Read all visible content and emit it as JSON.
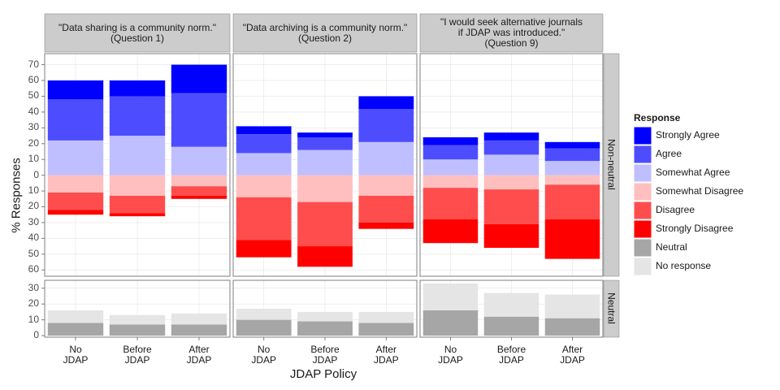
{
  "chart_data": {
    "type": "faceted-diverging-stacked-bar",
    "x_label": "JDAP Policy",
    "y_label": "% Responses",
    "legend_title": "Response",
    "categories": [
      "No\nJDAP",
      "Before\nJDAP",
      "After\nJDAP"
    ],
    "panels": [
      "\"Data sharing is a community norm.\"\n(Question 1)",
      "\"Data archiving is a community norm.\"\n(Question 2)",
      "\"I would seek alternative journals\nif JDAP was introduced.\"\n(Question 9)"
    ],
    "grid": true,
    "rows": [
      {
        "label": "Non-neutral",
        "ylim": [
          -64,
          77
        ],
        "yticks": [
          {
            "value": -60,
            "label": "60"
          },
          {
            "value": -50,
            "label": "50"
          },
          {
            "value": -40,
            "label": "40"
          },
          {
            "value": -30,
            "label": "30"
          },
          {
            "value": -20,
            "label": "20"
          },
          {
            "value": -10,
            "label": "10"
          },
          0,
          10,
          20,
          30,
          40,
          50,
          60,
          70
        ],
        "series": [
          {
            "name": "Somewhat Agree",
            "color": "#bfbfff",
            "values": [
              [
                22,
                25,
                18
              ],
              [
                14,
                16,
                21
              ],
              [
                10,
                13,
                9
              ]
            ]
          },
          {
            "name": "Agree",
            "color": "#4d4dff",
            "values": [
              [
                26,
                25,
                34
              ],
              [
                12,
                8,
                21
              ],
              [
                9,
                9,
                8
              ]
            ]
          },
          {
            "name": "Strongly Agree",
            "color": "#0000ff",
            "values": [
              [
                12,
                10,
                18
              ],
              [
                5,
                3,
                8
              ],
              [
                5,
                5,
                4
              ]
            ]
          },
          {
            "name": "Somewhat Disagree",
            "color": "#ffbfbf",
            "values": [
              [
                -11,
                -13,
                -7
              ],
              [
                -14,
                -17,
                -13
              ],
              [
                -8,
                -9,
                -6
              ]
            ]
          },
          {
            "name": "Disagree",
            "color": "#ff4d4d",
            "values": [
              [
                -11,
                -11,
                -6
              ],
              [
                -27,
                -28,
                -17
              ],
              [
                -20,
                -22,
                -22
              ]
            ]
          },
          {
            "name": "Strongly Disagree",
            "color": "#ff0000",
            "values": [
              [
                -3,
                -2,
                -2
              ],
              [
                -11,
                -13,
                -4
              ],
              [
                -15,
                -15,
                -25
              ]
            ]
          }
        ]
      },
      {
        "label": "Neutral",
        "ylim": [
          -1,
          35
        ],
        "yticks": [
          0,
          10,
          20,
          30
        ],
        "series": [
          {
            "name": "Neutral",
            "color": "#a6a6a6",
            "values": [
              [
                8,
                7,
                7
              ],
              [
                10,
                9,
                8
              ],
              [
                16,
                12,
                11
              ]
            ]
          },
          {
            "name": "No response",
            "color": "#e5e5e5",
            "values": [
              [
                8,
                6,
                7
              ],
              [
                7,
                6,
                7
              ],
              [
                17,
                15,
                15
              ]
            ]
          }
        ]
      }
    ]
  }
}
